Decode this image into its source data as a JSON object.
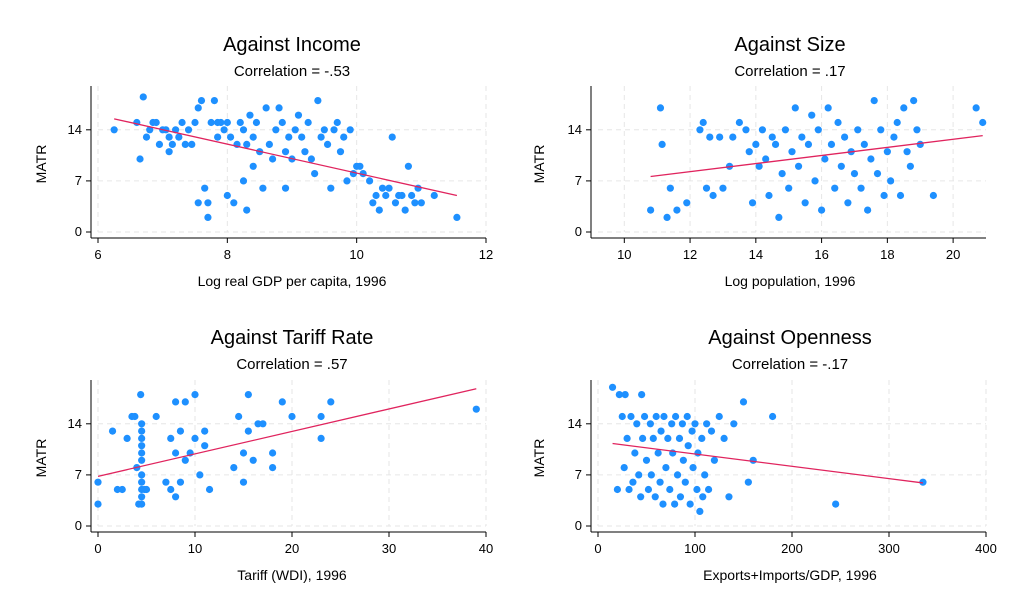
{
  "chart_data": [
    {
      "type": "scatter",
      "title": "Against Income",
      "subtitle": "Correlation = -.53",
      "xlabel": "Log real GDP per capita, 1996",
      "ylabel": "MATR",
      "xlim": [
        6,
        12
      ],
      "ylim": [
        0,
        20
      ],
      "xticks": [
        "6",
        "8",
        "10",
        "12"
      ],
      "yticks": [
        "0",
        "7",
        "14"
      ],
      "grid": true,
      "fit_line": {
        "x": [
          6.25,
          11.55
        ],
        "y": [
          15.5,
          5.0
        ]
      },
      "points": [
        [
          6.25,
          14
        ],
        [
          6.6,
          15
        ],
        [
          6.65,
          10
        ],
        [
          6.7,
          18.5
        ],
        [
          6.75,
          13
        ],
        [
          6.8,
          14
        ],
        [
          6.85,
          15
        ],
        [
          6.9,
          15
        ],
        [
          6.95,
          12
        ],
        [
          7.0,
          14
        ],
        [
          7.05,
          14
        ],
        [
          7.1,
          13
        ],
        [
          7.1,
          11
        ],
        [
          7.15,
          12
        ],
        [
          7.2,
          14
        ],
        [
          7.25,
          13
        ],
        [
          7.3,
          15
        ],
        [
          7.35,
          12
        ],
        [
          7.4,
          14
        ],
        [
          7.45,
          12
        ],
        [
          7.5,
          15
        ],
        [
          7.55,
          17
        ],
        [
          7.6,
          18
        ],
        [
          7.55,
          4
        ],
        [
          7.65,
          6
        ],
        [
          7.7,
          4
        ],
        [
          7.7,
          2
        ],
        [
          7.75,
          15
        ],
        [
          7.8,
          18
        ],
        [
          7.85,
          13
        ],
        [
          7.85,
          15
        ],
        [
          7.9,
          15
        ],
        [
          7.95,
          14
        ],
        [
          8.0,
          15
        ],
        [
          8.05,
          13
        ],
        [
          8.0,
          5
        ],
        [
          8.1,
          4
        ],
        [
          8.15,
          12
        ],
        [
          8.2,
          15
        ],
        [
          8.25,
          7
        ],
        [
          8.25,
          14
        ],
        [
          8.3,
          12
        ],
        [
          8.3,
          3
        ],
        [
          8.35,
          16
        ],
        [
          8.4,
          13
        ],
        [
          8.4,
          9
        ],
        [
          8.45,
          15
        ],
        [
          8.5,
          11
        ],
        [
          8.55,
          6
        ],
        [
          8.6,
          17
        ],
        [
          8.65,
          12
        ],
        [
          8.7,
          10
        ],
        [
          8.75,
          14
        ],
        [
          8.8,
          17
        ],
        [
          8.85,
          15
        ],
        [
          8.9,
          11
        ],
        [
          8.95,
          13
        ],
        [
          8.9,
          6
        ],
        [
          9.0,
          10
        ],
        [
          9.05,
          14
        ],
        [
          9.1,
          16
        ],
        [
          9.15,
          13
        ],
        [
          9.2,
          11
        ],
        [
          9.25,
          15
        ],
        [
          9.3,
          10
        ],
        [
          9.35,
          8
        ],
        [
          9.4,
          18
        ],
        [
          9.45,
          13
        ],
        [
          9.5,
          14
        ],
        [
          9.55,
          12
        ],
        [
          9.6,
          6
        ],
        [
          9.65,
          14
        ],
        [
          9.7,
          15
        ],
        [
          9.75,
          11
        ],
        [
          9.8,
          13
        ],
        [
          9.85,
          7
        ],
        [
          9.9,
          14
        ],
        [
          9.95,
          8
        ],
        [
          10.0,
          9
        ],
        [
          10.05,
          9
        ],
        [
          10.1,
          8
        ],
        [
          10.2,
          7
        ],
        [
          10.25,
          4
        ],
        [
          10.3,
          5
        ],
        [
          10.35,
          3
        ],
        [
          10.4,
          6
        ],
        [
          10.45,
          5
        ],
        [
          10.5,
          6
        ],
        [
          10.55,
          13
        ],
        [
          10.6,
          4
        ],
        [
          10.65,
          5
        ],
        [
          10.7,
          5
        ],
        [
          10.75,
          3
        ],
        [
          10.8,
          9
        ],
        [
          10.85,
          5
        ],
        [
          10.9,
          4
        ],
        [
          10.95,
          6
        ],
        [
          11.0,
          4
        ],
        [
          11.2,
          5
        ],
        [
          11.55,
          2
        ]
      ]
    },
    {
      "type": "scatter",
      "title": "Against Size",
      "subtitle": "Correlation = .17",
      "xlabel": "Log population, 1996",
      "ylabel": "MATR",
      "xlim": [
        9.2,
        21.0
      ],
      "ylim": [
        0,
        20
      ],
      "xticks": [
        "10",
        "12",
        "14",
        "16",
        "18",
        "20"
      ],
      "yticks": [
        "0",
        "7",
        "14"
      ],
      "grid": true,
      "fit_line": {
        "x": [
          10.8,
          20.9
        ],
        "y": [
          7.6,
          13.2
        ]
      },
      "points": [
        [
          10.8,
          3
        ],
        [
          11.1,
          17
        ],
        [
          11.15,
          12
        ],
        [
          11.3,
          2
        ],
        [
          11.4,
          6
        ],
        [
          11.6,
          3
        ],
        [
          11.9,
          4
        ],
        [
          12.3,
          14
        ],
        [
          12.4,
          15
        ],
        [
          12.5,
          6
        ],
        [
          12.6,
          13
        ],
        [
          12.7,
          5
        ],
        [
          12.9,
          13
        ],
        [
          13.0,
          6
        ],
        [
          13.2,
          9
        ],
        [
          13.3,
          13
        ],
        [
          13.5,
          15
        ],
        [
          13.7,
          14
        ],
        [
          13.8,
          11
        ],
        [
          13.9,
          4
        ],
        [
          14.0,
          12
        ],
        [
          14.1,
          9
        ],
        [
          14.2,
          14
        ],
        [
          14.3,
          10
        ],
        [
          14.4,
          5
        ],
        [
          14.5,
          13
        ],
        [
          14.6,
          12
        ],
        [
          14.7,
          2
        ],
        [
          14.8,
          8
        ],
        [
          14.9,
          14
        ],
        [
          15.0,
          6
        ],
        [
          15.1,
          11
        ],
        [
          15.2,
          17
        ],
        [
          15.3,
          9
        ],
        [
          15.4,
          13
        ],
        [
          15.5,
          4
        ],
        [
          15.6,
          12
        ],
        [
          15.7,
          16
        ],
        [
          15.8,
          7
        ],
        [
          15.9,
          14
        ],
        [
          16.0,
          3
        ],
        [
          16.1,
          10
        ],
        [
          16.2,
          17
        ],
        [
          16.3,
          12
        ],
        [
          16.4,
          6
        ],
        [
          16.5,
          15
        ],
        [
          16.6,
          9
        ],
        [
          16.7,
          13
        ],
        [
          16.8,
          4
        ],
        [
          16.9,
          11
        ],
        [
          17.0,
          8
        ],
        [
          17.1,
          14
        ],
        [
          17.2,
          6
        ],
        [
          17.3,
          12
        ],
        [
          17.4,
          3
        ],
        [
          17.5,
          10
        ],
        [
          17.6,
          18
        ],
        [
          17.7,
          8
        ],
        [
          17.8,
          14
        ],
        [
          17.9,
          5
        ],
        [
          18.0,
          11
        ],
        [
          18.1,
          7
        ],
        [
          18.2,
          13
        ],
        [
          18.3,
          15
        ],
        [
          18.4,
          5
        ],
        [
          18.5,
          17
        ],
        [
          18.6,
          11
        ],
        [
          18.7,
          9
        ],
        [
          18.8,
          18
        ],
        [
          18.9,
          14
        ],
        [
          19.0,
          12
        ],
        [
          19.4,
          5
        ],
        [
          20.7,
          17
        ],
        [
          20.9,
          15
        ]
      ]
    },
    {
      "type": "scatter",
      "title": "Against Tariff Rate",
      "subtitle": "Correlation = .57",
      "xlabel": "Tariff (WDI), 1996",
      "ylabel": "MATR",
      "xlim": [
        0,
        40
      ],
      "ylim": [
        0,
        20
      ],
      "xticks": [
        "0",
        "10",
        "20",
        "30",
        "40"
      ],
      "yticks": [
        "0",
        "7",
        "14"
      ],
      "grid": true,
      "fit_line": {
        "x": [
          0,
          39
        ],
        "y": [
          6.8,
          18.8
        ]
      },
      "points": [
        [
          0,
          3
        ],
        [
          0,
          6
        ],
        [
          1.5,
          13
        ],
        [
          2,
          5
        ],
        [
          2.5,
          5
        ],
        [
          3,
          12
        ],
        [
          3.5,
          15
        ],
        [
          3.8,
          15
        ],
        [
          4,
          8
        ],
        [
          4.2,
          3
        ],
        [
          4.4,
          18
        ],
        [
          4.5,
          14
        ],
        [
          4.5,
          13
        ],
        [
          4.5,
          12
        ],
        [
          4.5,
          11
        ],
        [
          4.5,
          10
        ],
        [
          4.5,
          9
        ],
        [
          4.5,
          7
        ],
        [
          4.5,
          6
        ],
        [
          4.5,
          5
        ],
        [
          4.5,
          4
        ],
        [
          4.5,
          3
        ],
        [
          4.8,
          5
        ],
        [
          5,
          5
        ],
        [
          6,
          15
        ],
        [
          7,
          6
        ],
        [
          7.5,
          12
        ],
        [
          7.5,
          5
        ],
        [
          8,
          17
        ],
        [
          8,
          10
        ],
        [
          8,
          4
        ],
        [
          8.5,
          13
        ],
        [
          8.5,
          6
        ],
        [
          9,
          17
        ],
        [
          9,
          9
        ],
        [
          9.5,
          10
        ],
        [
          10,
          18
        ],
        [
          10,
          12
        ],
        [
          10.5,
          7
        ],
        [
          11,
          13
        ],
        [
          11,
          11
        ],
        [
          11.5,
          5
        ],
        [
          14,
          8
        ],
        [
          14.5,
          15
        ],
        [
          15,
          6
        ],
        [
          15,
          10
        ],
        [
          15.5,
          13
        ],
        [
          15.5,
          18
        ],
        [
          16,
          9
        ],
        [
          16.5,
          14
        ],
        [
          17,
          14
        ],
        [
          18,
          10
        ],
        [
          18,
          8
        ],
        [
          19,
          17
        ],
        [
          20,
          15
        ],
        [
          23,
          12
        ],
        [
          23,
          15
        ],
        [
          24,
          17
        ],
        [
          39,
          16
        ]
      ]
    },
    {
      "type": "scatter",
      "title": "Against Openness",
      "subtitle": "Correlation = -.17",
      "xlabel": "Exports+Imports/GDP, 1996",
      "ylabel": "MATR",
      "xlim": [
        0,
        400
      ],
      "ylim": [
        0,
        20
      ],
      "xticks": [
        "0",
        "100",
        "200",
        "300",
        "400"
      ],
      "yticks": [
        "0",
        "7",
        "14"
      ],
      "grid": true,
      "fit_line": {
        "x": [
          15,
          335
        ],
        "y": [
          11.3,
          5.9
        ]
      },
      "points": [
        [
          15,
          19
        ],
        [
          20,
          5
        ],
        [
          22,
          18
        ],
        [
          25,
          15
        ],
        [
          27,
          8
        ],
        [
          28,
          18
        ],
        [
          30,
          12
        ],
        [
          32,
          5
        ],
        [
          34,
          15
        ],
        [
          36,
          6
        ],
        [
          38,
          10
        ],
        [
          40,
          14
        ],
        [
          42,
          7
        ],
        [
          44,
          4
        ],
        [
          45,
          18
        ],
        [
          46,
          12
        ],
        [
          48,
          15
        ],
        [
          50,
          9
        ],
        [
          52,
          5
        ],
        [
          54,
          14
        ],
        [
          55,
          7
        ],
        [
          57,
          12
        ],
        [
          59,
          4
        ],
        [
          60,
          15
        ],
        [
          62,
          10
        ],
        [
          64,
          6
        ],
        [
          65,
          13
        ],
        [
          67,
          3
        ],
        [
          68,
          15
        ],
        [
          70,
          8
        ],
        [
          72,
          12
        ],
        [
          74,
          5
        ],
        [
          76,
          14
        ],
        [
          77,
          10
        ],
        [
          79,
          3
        ],
        [
          80,
          15
        ],
        [
          82,
          7
        ],
        [
          84,
          12
        ],
        [
          85,
          4
        ],
        [
          87,
          14
        ],
        [
          88,
          9
        ],
        [
          90,
          6
        ],
        [
          92,
          15
        ],
        [
          93,
          11
        ],
        [
          95,
          3
        ],
        [
          97,
          13
        ],
        [
          98,
          8
        ],
        [
          100,
          14
        ],
        [
          102,
          5
        ],
        [
          103,
          10
        ],
        [
          105,
          2
        ],
        [
          107,
          12
        ],
        [
          108,
          4
        ],
        [
          110,
          7
        ],
        [
          112,
          14
        ],
        [
          114,
          5
        ],
        [
          117,
          13
        ],
        [
          120,
          9
        ],
        [
          125,
          15
        ],
        [
          130,
          12
        ],
        [
          135,
          4
        ],
        [
          140,
          14
        ],
        [
          150,
          17
        ],
        [
          155,
          6
        ],
        [
          160,
          9
        ],
        [
          180,
          15
        ],
        [
          245,
          3
        ],
        [
          335,
          6
        ]
      ]
    }
  ],
  "colors": {
    "marker": "#1e90ff",
    "fit_line": "#e0245e",
    "grid": "#e6e6e6",
    "axis": "#000000"
  }
}
